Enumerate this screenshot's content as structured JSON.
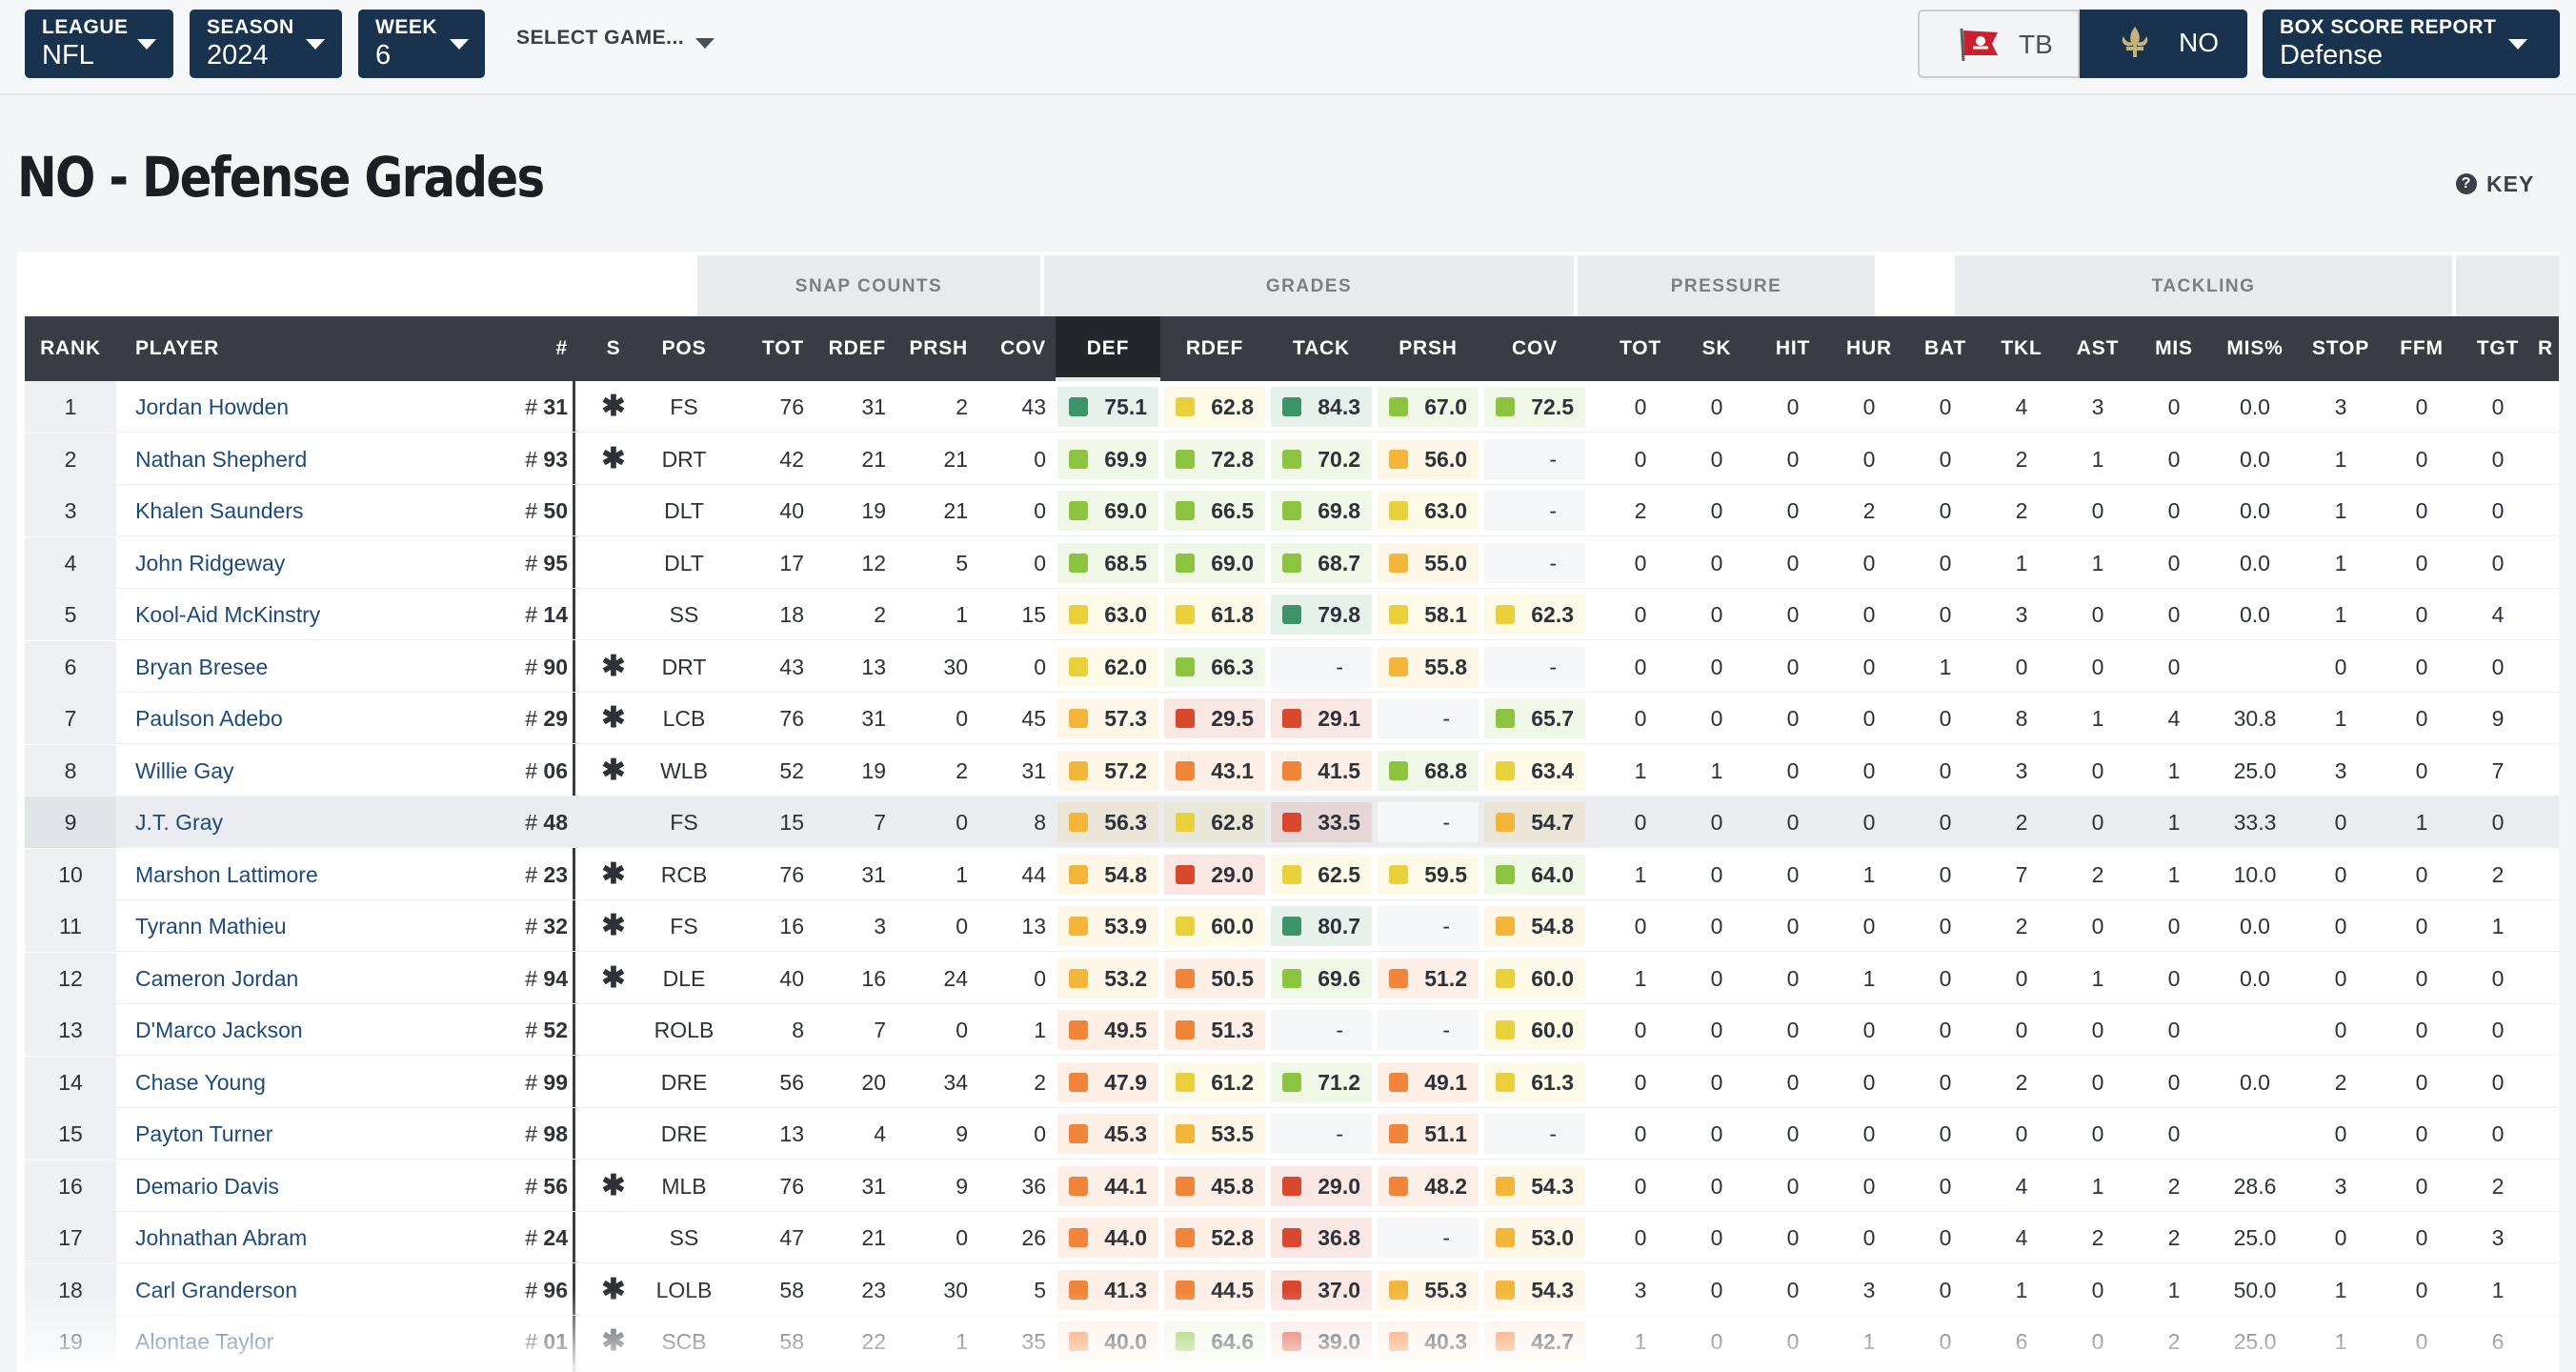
{
  "filters": {
    "league": {
      "label": "LEAGUE",
      "value": "NFL"
    },
    "season": {
      "label": "SEASON",
      "value": "2024"
    },
    "week": {
      "label": "WEEK",
      "value": "6"
    },
    "game": {
      "label": "SELECT GAME..."
    },
    "report": {
      "label": "BOX SCORE REPORT",
      "value": "Defense"
    }
  },
  "teams": {
    "away": "TB",
    "home": "NO",
    "selected": "NO"
  },
  "page": {
    "title": "NO - Defense Grades",
    "key_label": "KEY"
  },
  "column_groups": [
    "SNAP COUNTS",
    "GRADES",
    "PRESSURE",
    "TACKLING"
  ],
  "columns": [
    "RANK",
    "PLAYER",
    "#",
    "S",
    "POS",
    "TOT",
    "RDEF",
    "PRSH",
    "COV",
    "DEF",
    "RDEF",
    "TACK",
    "PRSH",
    "COV",
    "TOT",
    "SK",
    "HIT",
    "HUR",
    "BAT",
    "TKL",
    "AST",
    "MIS",
    "MIS%",
    "STOP",
    "FFM",
    "TGT",
    "R"
  ],
  "grade_colors": {
    "dark_green": "#3d9468",
    "green": "#8cc43f",
    "yellow": "#e8d13b",
    "amber": "#f4b63a",
    "orange": "#f0843a",
    "red": "#d9472d"
  },
  "players": [
    {
      "rank": "1",
      "name": "Jordan Howden",
      "num_prefix": "#",
      "num": "31",
      "starter": "✱",
      "pos": "FS",
      "snaps": [
        "76",
        "31",
        "2",
        "43"
      ],
      "grades": [
        "75.1",
        "62.8",
        "84.3",
        "67.0",
        "72.5"
      ],
      "pressure": [
        "0",
        "0",
        "0",
        "0",
        "0"
      ],
      "tackling": [
        "4",
        "3",
        "0",
        "0.0",
        "3",
        "0",
        "0"
      ]
    },
    {
      "rank": "2",
      "name": "Nathan Shepherd",
      "num_prefix": "#",
      "num": "93",
      "starter": "✱",
      "pos": "DRT",
      "snaps": [
        "42",
        "21",
        "21",
        "0"
      ],
      "grades": [
        "69.9",
        "72.8",
        "70.2",
        "56.0",
        "-"
      ],
      "pressure": [
        "0",
        "0",
        "0",
        "0",
        "0"
      ],
      "tackling": [
        "2",
        "1",
        "0",
        "0.0",
        "1",
        "0",
        "0"
      ]
    },
    {
      "rank": "3",
      "name": "Khalen Saunders",
      "num_prefix": "#",
      "num": "50",
      "starter": "",
      "pos": "DLT",
      "snaps": [
        "40",
        "19",
        "21",
        "0"
      ],
      "grades": [
        "69.0",
        "66.5",
        "69.8",
        "63.0",
        "-"
      ],
      "pressure": [
        "2",
        "0",
        "0",
        "2",
        "0"
      ],
      "tackling": [
        "2",
        "0",
        "0",
        "0.0",
        "1",
        "0",
        "0"
      ]
    },
    {
      "rank": "4",
      "name": "John Ridgeway",
      "num_prefix": "#",
      "num": "95",
      "starter": "",
      "pos": "DLT",
      "snaps": [
        "17",
        "12",
        "5",
        "0"
      ],
      "grades": [
        "68.5",
        "69.0",
        "68.7",
        "55.0",
        "-"
      ],
      "pressure": [
        "0",
        "0",
        "0",
        "0",
        "0"
      ],
      "tackling": [
        "1",
        "1",
        "0",
        "0.0",
        "1",
        "0",
        "0"
      ]
    },
    {
      "rank": "5",
      "name": "Kool-Aid McKinstry",
      "num_prefix": "#",
      "num": "14",
      "starter": "",
      "pos": "SS",
      "snaps": [
        "18",
        "2",
        "1",
        "15"
      ],
      "grades": [
        "63.0",
        "61.8",
        "79.8",
        "58.1",
        "62.3"
      ],
      "pressure": [
        "0",
        "0",
        "0",
        "0",
        "0"
      ],
      "tackling": [
        "3",
        "0",
        "0",
        "0.0",
        "1",
        "0",
        "4"
      ]
    },
    {
      "rank": "6",
      "name": "Bryan Bresee",
      "num_prefix": "#",
      "num": "90",
      "starter": "✱",
      "pos": "DRT",
      "snaps": [
        "43",
        "13",
        "30",
        "0"
      ],
      "grades": [
        "62.0",
        "66.3",
        "-",
        "55.8",
        "-"
      ],
      "pressure": [
        "0",
        "0",
        "0",
        "0",
        "1"
      ],
      "tackling": [
        "0",
        "0",
        "0",
        "",
        "0",
        "0",
        "0"
      ]
    },
    {
      "rank": "7",
      "name": "Paulson Adebo",
      "num_prefix": "#",
      "num": "29",
      "starter": "✱",
      "pos": "LCB",
      "snaps": [
        "76",
        "31",
        "0",
        "45"
      ],
      "grades": [
        "57.3",
        "29.5",
        "29.1",
        "-",
        "65.7"
      ],
      "pressure": [
        "0",
        "0",
        "0",
        "0",
        "0"
      ],
      "tackling": [
        "8",
        "1",
        "4",
        "30.8",
        "1",
        "0",
        "9"
      ]
    },
    {
      "rank": "8",
      "name": "Willie Gay",
      "num_prefix": "#",
      "num": "06",
      "starter": "✱",
      "pos": "WLB",
      "snaps": [
        "52",
        "19",
        "2",
        "31"
      ],
      "grades": [
        "57.2",
        "43.1",
        "41.5",
        "68.8",
        "63.4"
      ],
      "pressure": [
        "1",
        "1",
        "0",
        "0",
        "0"
      ],
      "tackling": [
        "3",
        "0",
        "1",
        "25.0",
        "3",
        "0",
        "7"
      ]
    },
    {
      "rank": "9",
      "name": "J.T. Gray",
      "num_prefix": "#",
      "num": "48",
      "starter": "",
      "pos": "FS",
      "snaps": [
        "15",
        "7",
        "0",
        "8"
      ],
      "grades": [
        "56.3",
        "62.8",
        "33.5",
        "-",
        "54.7"
      ],
      "pressure": [
        "0",
        "0",
        "0",
        "0",
        "0"
      ],
      "tackling": [
        "2",
        "0",
        "1",
        "33.3",
        "0",
        "1",
        "0"
      ]
    },
    {
      "rank": "10",
      "name": "Marshon Lattimore",
      "num_prefix": "#",
      "num": "23",
      "starter": "✱",
      "pos": "RCB",
      "snaps": [
        "76",
        "31",
        "1",
        "44"
      ],
      "grades": [
        "54.8",
        "29.0",
        "62.5",
        "59.5",
        "64.0"
      ],
      "pressure": [
        "1",
        "0",
        "0",
        "1",
        "0"
      ],
      "tackling": [
        "7",
        "2",
        "1",
        "10.0",
        "0",
        "0",
        "2"
      ]
    },
    {
      "rank": "11",
      "name": "Tyrann Mathieu",
      "num_prefix": "#",
      "num": "32",
      "starter": "✱",
      "pos": "FS",
      "snaps": [
        "16",
        "3",
        "0",
        "13"
      ],
      "grades": [
        "53.9",
        "60.0",
        "80.7",
        "-",
        "54.8"
      ],
      "pressure": [
        "0",
        "0",
        "0",
        "0",
        "0"
      ],
      "tackling": [
        "2",
        "0",
        "0",
        "0.0",
        "0",
        "0",
        "1"
      ]
    },
    {
      "rank": "12",
      "name": "Cameron Jordan",
      "num_prefix": "#",
      "num": "94",
      "starter": "✱",
      "pos": "DLE",
      "snaps": [
        "40",
        "16",
        "24",
        "0"
      ],
      "grades": [
        "53.2",
        "50.5",
        "69.6",
        "51.2",
        "60.0"
      ],
      "pressure": [
        "1",
        "0",
        "0",
        "1",
        "0"
      ],
      "tackling": [
        "0",
        "1",
        "0",
        "0.0",
        "0",
        "0",
        "0"
      ]
    },
    {
      "rank": "13",
      "name": "D'Marco Jackson",
      "num_prefix": "#",
      "num": "52",
      "starter": "",
      "pos": "ROLB",
      "snaps": [
        "8",
        "7",
        "0",
        "1"
      ],
      "grades": [
        "49.5",
        "51.3",
        "-",
        "-",
        "60.0"
      ],
      "pressure": [
        "0",
        "0",
        "0",
        "0",
        "0"
      ],
      "tackling": [
        "0",
        "0",
        "0",
        "",
        "0",
        "0",
        "0"
      ]
    },
    {
      "rank": "14",
      "name": "Chase Young",
      "num_prefix": "#",
      "num": "99",
      "starter": "",
      "pos": "DRE",
      "snaps": [
        "56",
        "20",
        "34",
        "2"
      ],
      "grades": [
        "47.9",
        "61.2",
        "71.2",
        "49.1",
        "61.3"
      ],
      "pressure": [
        "0",
        "0",
        "0",
        "0",
        "0"
      ],
      "tackling": [
        "2",
        "0",
        "0",
        "0.0",
        "2",
        "0",
        "0"
      ]
    },
    {
      "rank": "15",
      "name": "Payton Turner",
      "num_prefix": "#",
      "num": "98",
      "starter": "",
      "pos": "DRE",
      "snaps": [
        "13",
        "4",
        "9",
        "0"
      ],
      "grades": [
        "45.3",
        "53.5",
        "-",
        "51.1",
        "-"
      ],
      "pressure": [
        "0",
        "0",
        "0",
        "0",
        "0"
      ],
      "tackling": [
        "0",
        "0",
        "0",
        "",
        "0",
        "0",
        "0"
      ]
    },
    {
      "rank": "16",
      "name": "Demario Davis",
      "num_prefix": "#",
      "num": "56",
      "starter": "✱",
      "pos": "MLB",
      "snaps": [
        "76",
        "31",
        "9",
        "36"
      ],
      "grades": [
        "44.1",
        "45.8",
        "29.0",
        "48.2",
        "54.3"
      ],
      "pressure": [
        "0",
        "0",
        "0",
        "0",
        "0"
      ],
      "tackling": [
        "4",
        "1",
        "2",
        "28.6",
        "3",
        "0",
        "2"
      ]
    },
    {
      "rank": "17",
      "name": "Johnathan Abram",
      "num_prefix": "#",
      "num": "24",
      "starter": "",
      "pos": "SS",
      "snaps": [
        "47",
        "21",
        "0",
        "26"
      ],
      "grades": [
        "44.0",
        "52.8",
        "36.8",
        "-",
        "53.0"
      ],
      "pressure": [
        "0",
        "0",
        "0",
        "0",
        "0"
      ],
      "tackling": [
        "4",
        "2",
        "2",
        "25.0",
        "0",
        "0",
        "3"
      ]
    },
    {
      "rank": "18",
      "name": "Carl Granderson",
      "num_prefix": "#",
      "num": "96",
      "starter": "✱",
      "pos": "LOLB",
      "snaps": [
        "58",
        "23",
        "30",
        "5"
      ],
      "grades": [
        "41.3",
        "44.5",
        "37.0",
        "55.3",
        "54.3"
      ],
      "pressure": [
        "3",
        "0",
        "0",
        "3",
        "0"
      ],
      "tackling": [
        "1",
        "0",
        "1",
        "50.0",
        "1",
        "0",
        "1"
      ]
    },
    {
      "rank": "19",
      "name": "Alontae Taylor",
      "num_prefix": "#",
      "num": "01",
      "starter": "✱",
      "pos": "SCB",
      "snaps": [
        "58",
        "22",
        "1",
        "35"
      ],
      "grades": [
        "40.0",
        "64.6",
        "39.0",
        "40.3",
        "42.7"
      ],
      "pressure": [
        "1",
        "0",
        "0",
        "1",
        "0"
      ],
      "tackling": [
        "6",
        "0",
        "2",
        "25.0",
        "1",
        "0",
        "6"
      ]
    }
  ]
}
